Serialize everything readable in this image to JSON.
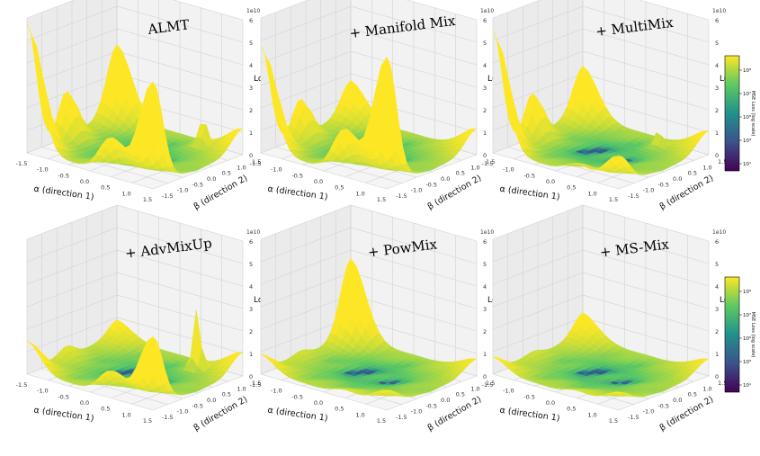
{
  "colors": {
    "background": "#ffffff",
    "pane_left": "#ebebeb",
    "pane_right": "#f2f2f2",
    "pane_floor": "#f5f5f5",
    "grid": "#d2d2d2",
    "axis": "#333333",
    "viridis": [
      "#440154",
      "#3b528b",
      "#21918c",
      "#5ec962",
      "#fde725"
    ]
  },
  "chart_data": [
    {
      "type": "surface",
      "title": "ALMT",
      "xlabel": "α (direction 1)",
      "ylabel": "β (direction 2)",
      "zlabel": "Loss",
      "offset_text": "1e10",
      "x_ticks": [
        "-1.5",
        "-1.0",
        "-0.5",
        "0.0",
        "0.5",
        "1.0",
        "1.5"
      ],
      "y_ticks": [
        "-1.5",
        "-1.0",
        "-0.5",
        "0.0",
        "0.5",
        "1.0",
        "1.5"
      ],
      "z_ticks": [
        "0",
        "1",
        "2",
        "3",
        "4",
        "5",
        "6"
      ],
      "xlim": [
        -1.5,
        1.5
      ],
      "ylim": [
        -1.5,
        1.5
      ],
      "zlim": [
        0,
        6
      ],
      "features": {
        "corner_near_left": 3.8,
        "corner_back_left": 5.5,
        "corner_right": 4.5,
        "corner_near": 0.9,
        "spike_height": 1.3,
        "spike_x": 0.75,
        "spike_y": -1.2
      }
    },
    {
      "type": "surface",
      "title": "+ Manifold Mix",
      "xlabel": "α (direction 1)",
      "ylabel": "β (direction 2)",
      "zlabel": "Loss",
      "offset_text": "1e10",
      "x_ticks": [
        "-1.5",
        "-1.0",
        "-0.5",
        "0.0",
        "0.5",
        "1.0",
        "1.5"
      ],
      "y_ticks": [
        "-1.5",
        "-1.0",
        "-0.5",
        "0.0",
        "0.5",
        "1.0",
        "1.5"
      ],
      "z_ticks": [
        "0",
        "1",
        "2",
        "3",
        "4",
        "5",
        "6"
      ],
      "xlim": [
        -1.5,
        1.5
      ],
      "ylim": [
        -1.5,
        1.5
      ],
      "zlim": [
        0,
        6
      ],
      "features": {
        "corner_near_left": 1.8,
        "corner_back_left": 4.5,
        "corner_right": 5.6,
        "corner_near": 0.9,
        "spike_height": 0,
        "spike_x": 0,
        "spike_y": 0
      }
    },
    {
      "type": "surface",
      "title": "+ MultiMix",
      "xlabel": "α (direction 1)",
      "ylabel": "β (direction 2)",
      "zlabel": "Loss",
      "offset_text": "1e10",
      "x_ticks": [
        "-1.5",
        "-1.0",
        "-0.5",
        "0.0",
        "0.5",
        "1.0",
        "1.5"
      ],
      "y_ticks": [
        "-1.5",
        "-1.0",
        "-0.5",
        "0.0",
        "0.5",
        "1.0",
        "1.5"
      ],
      "z_ticks": [
        "0",
        "1",
        "2",
        "3",
        "4",
        "5",
        "6"
      ],
      "xlim": [
        -1.5,
        1.5
      ],
      "ylim": [
        -1.5,
        1.5
      ],
      "zlim": [
        0,
        6
      ],
      "features": {
        "corner_near_left": 2.6,
        "corner_back_left": 5.2,
        "corner_right": 1.2,
        "corner_near": 0.8,
        "spike_height": 0.7,
        "spike_x": 0.6,
        "spike_y": -1.1
      }
    },
    {
      "type": "surface",
      "title": "+ AdvMixUp",
      "xlabel": "α (direction 1)",
      "ylabel": "β (direction 2)",
      "zlabel": "Loss",
      "offset_text": "1e10",
      "x_ticks": [
        "-1.5",
        "-1.0",
        "-0.5",
        "0.0",
        "0.5",
        "1.0",
        "1.5"
      ],
      "y_ticks": [
        "-1.5",
        "-1.0",
        "-0.5",
        "0.0",
        "0.5",
        "1.0",
        "1.5"
      ],
      "z_ticks": [
        "0",
        "1",
        "2",
        "3",
        "4",
        "5",
        "6"
      ],
      "xlim": [
        -1.5,
        1.5
      ],
      "ylim": [
        -1.5,
        1.5
      ],
      "zlim": [
        0,
        6
      ],
      "features": {
        "corner_near_left": 0.8,
        "corner_back_left": 1.2,
        "corner_right": 3.0,
        "corner_near": 0.8,
        "spike_height": 2.6,
        "spike_x": 0.7,
        "spike_y": -1.1
      }
    },
    {
      "type": "surface",
      "title": "+ PowMix",
      "xlabel": "α (direction 1)",
      "ylabel": "β (direction 2)",
      "zlabel": "Loss",
      "offset_text": "1e10",
      "x_ticks": [
        "-1.5",
        "-1.0",
        "-0.5",
        "0.0",
        "0.5",
        "1.0",
        "1.5"
      ],
      "y_ticks": [
        "-1.5",
        "-1.0",
        "-0.5",
        "0.0",
        "0.5",
        "1.0",
        "1.5"
      ],
      "z_ticks": [
        "0",
        "1",
        "2",
        "3",
        "4",
        "5",
        "6"
      ],
      "xlim": [
        -1.5,
        1.5
      ],
      "ylim": [
        -1.5,
        1.5
      ],
      "zlim": [
        0,
        6
      ],
      "features": {
        "corner_near_left": 4.2,
        "corner_back_left": 0.6,
        "corner_right": 0.6,
        "corner_near": 0.5,
        "spike_height": 0,
        "spike_x": 0,
        "spike_y": 0
      }
    },
    {
      "type": "surface",
      "title": "+ MS-Mix",
      "xlabel": "α (direction 1)",
      "ylabel": "β (direction 2)",
      "zlabel": "Loss",
      "offset_text": "1e10",
      "x_ticks": [
        "-1.5",
        "-1.0",
        "-0.5",
        "0.0",
        "0.5",
        "1.0",
        "1.5"
      ],
      "y_ticks": [
        "-1.5",
        "-1.0",
        "-0.5",
        "0.0",
        "0.5",
        "1.0",
        "1.5"
      ],
      "z_ticks": [
        "0",
        "1",
        "2",
        "3",
        "4",
        "5",
        "6"
      ],
      "xlim": [
        -1.5,
        1.5
      ],
      "ylim": [
        -1.5,
        1.5
      ],
      "zlim": [
        0,
        6
      ],
      "features": {
        "corner_near_left": 1.2,
        "corner_back_left": 0.5,
        "corner_right": 0.5,
        "corner_near": 0.5,
        "spike_height": 0,
        "spike_x": 0,
        "spike_y": 0
      }
    }
  ],
  "colorbars": [
    {
      "label": "MSE Loss (log scale)",
      "scale": "log",
      "ticks": [
        "10⁹",
        "10⁷",
        "10⁵",
        "10³",
        "10¹"
      ]
    },
    {
      "label": "MSE Loss (log scale)",
      "scale": "log",
      "ticks": [
        "10⁹",
        "10⁷",
        "10⁵",
        "10³",
        "10¹"
      ]
    }
  ]
}
